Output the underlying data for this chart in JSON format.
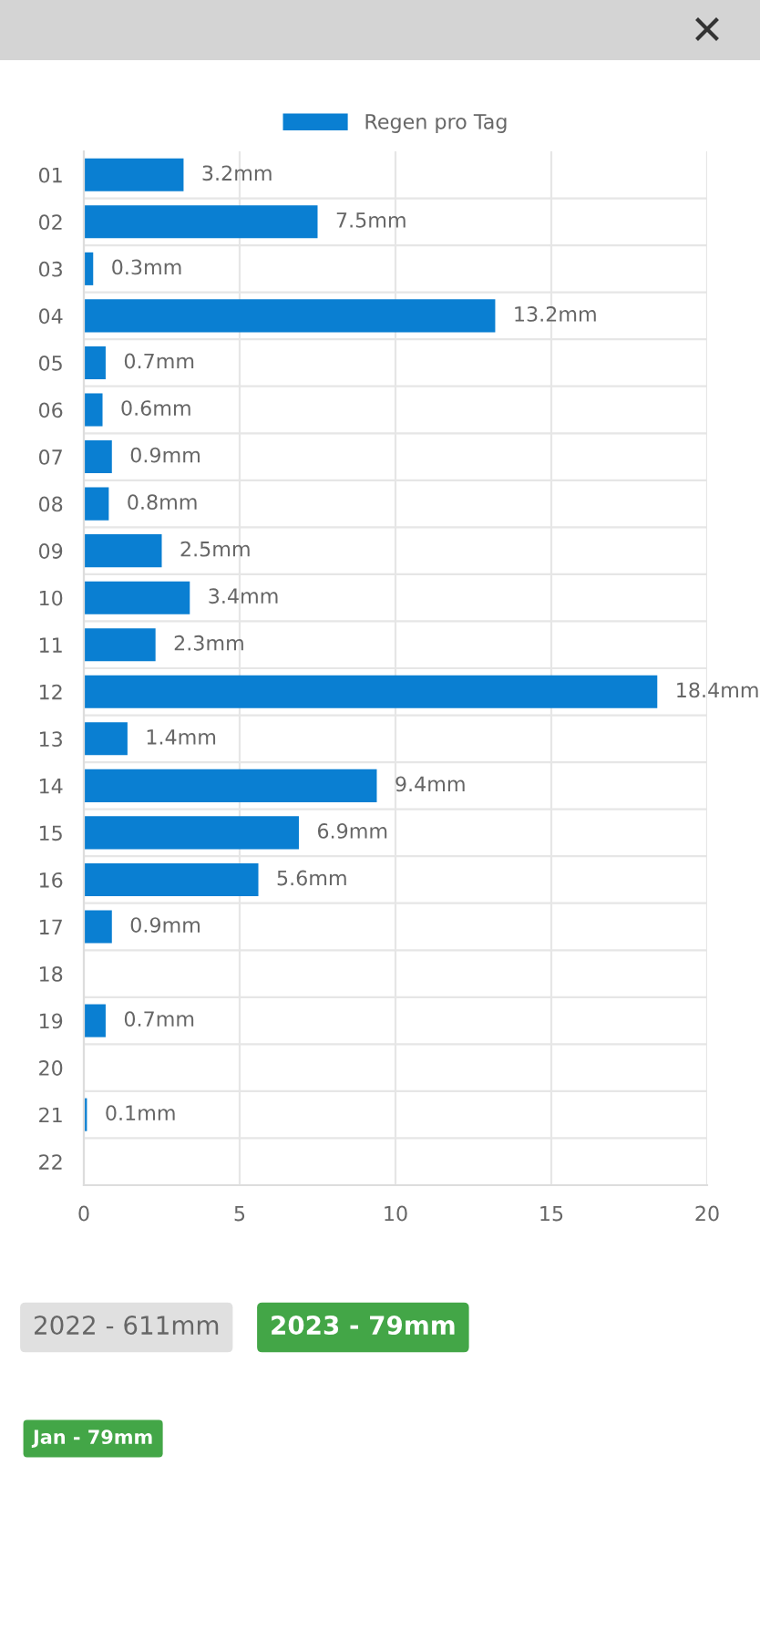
{
  "chart_data": {
    "type": "bar",
    "orientation": "horizontal",
    "categories": [
      "01",
      "02",
      "03",
      "04",
      "05",
      "06",
      "07",
      "08",
      "09",
      "10",
      "11",
      "12",
      "13",
      "14",
      "15",
      "16",
      "17",
      "18",
      "19",
      "20",
      "21",
      "22"
    ],
    "series": [
      {
        "name": "Regen pro Tag",
        "color": "#0a7fd2",
        "values": [
          3.2,
          7.5,
          0.3,
          13.2,
          0.7,
          0.6,
          0.9,
          0.8,
          2.5,
          3.4,
          2.3,
          18.4,
          1.4,
          9.4,
          6.9,
          5.6,
          0.9,
          null,
          0.7,
          null,
          0.1,
          null
        ],
        "value_labels": [
          "3.2mm",
          "7.5mm",
          "0.3mm",
          "13.2mm",
          "0.7mm",
          "0.6mm",
          "0.9mm",
          "0.8mm",
          "2.5mm",
          "3.4mm",
          "2.3mm",
          "18.4mm",
          "1.4mm",
          "9.4mm",
          "6.9mm",
          "5.6mm",
          "0.9mm",
          null,
          "0.7mm",
          null,
          "0.1mm",
          null
        ]
      }
    ],
    "xlim": [
      0,
      20
    ],
    "xticks": [
      0,
      5,
      10,
      15,
      20
    ],
    "grid": true,
    "legend": "top",
    "annotations": [
      "2022 - 611mm",
      "2023 - 79mm",
      "Jan - 79mm"
    ]
  }
}
